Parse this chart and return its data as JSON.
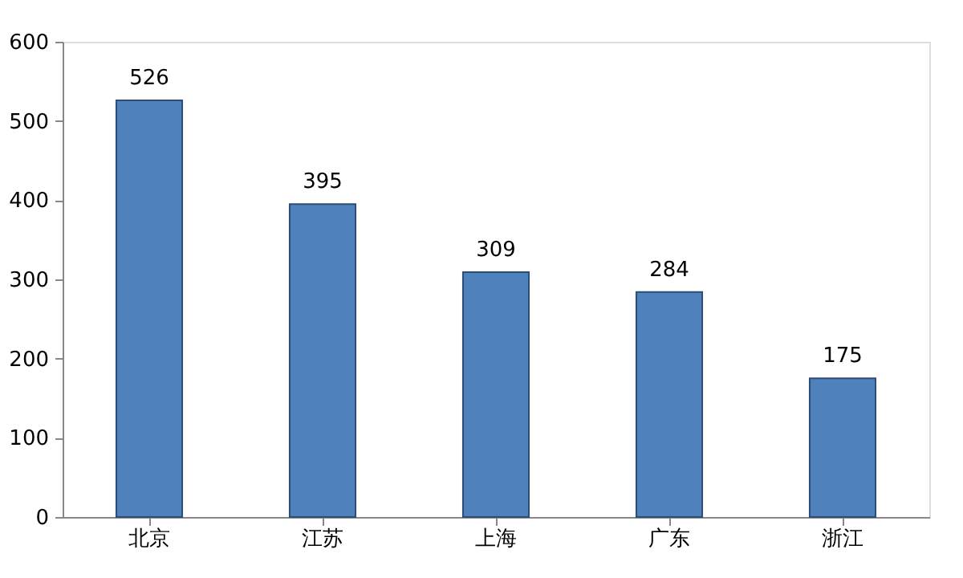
{
  "chart_data": {
    "type": "bar",
    "categories": [
      "北京",
      "江苏",
      "上海",
      "广东",
      "浙江"
    ],
    "values": [
      526,
      395,
      309,
      284,
      175
    ],
    "color": "#4f81bd",
    "ylim": [
      0,
      600
    ],
    "yticks": [
      0,
      100,
      200,
      300,
      400,
      500,
      600
    ],
    "grid": false,
    "data_labels": true
  }
}
